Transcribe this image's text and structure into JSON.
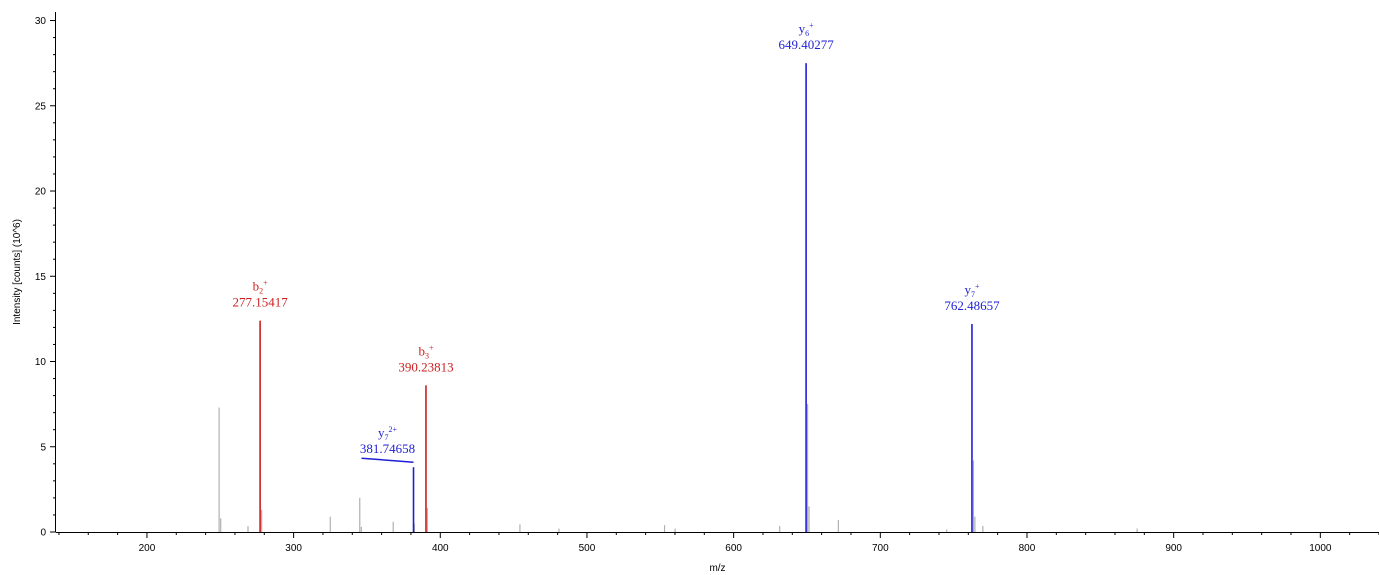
{
  "chart_data": {
    "type": "bar",
    "xlabel": "m/z",
    "ylabel": "Intensity [counts] (10^6)",
    "xlim": [
      138,
      1040
    ],
    "ylim": [
      0,
      30.5
    ],
    "x_ticks": [
      "200",
      "300",
      "400",
      "500",
      "600",
      "700",
      "800",
      "900",
      "1000"
    ],
    "x_tick_values": [
      200,
      300,
      400,
      500,
      600,
      700,
      800,
      900,
      1000
    ],
    "y_ticks": [
      "0",
      "5",
      "10",
      "15",
      "20",
      "25",
      "30"
    ],
    "y_tick_values": [
      0,
      5,
      10,
      15,
      20,
      25,
      30
    ],
    "colors": {
      "b_ion": "#cc1f1f",
      "y_ion": "#1f1fd6",
      "unassigned": "#b0b0b0",
      "axis": "#000000"
    },
    "annotated_peaks": [
      {
        "ion": "b",
        "sub": "2",
        "sup": "+",
        "mz_label": "277.15417",
        "mz": 277.15417,
        "intensity": 12.4,
        "type": "b"
      },
      {
        "ion": "b",
        "sub": "3",
        "sup": "+",
        "mz_label": "390.23813",
        "mz": 390.23813,
        "intensity": 8.6,
        "type": "b"
      },
      {
        "ion": "y",
        "sub": "7",
        "sup": "2+",
        "mz_label": "381.74658",
        "mz": 381.74658,
        "intensity": 3.8,
        "type": "y"
      },
      {
        "ion": "y",
        "sub": "6",
        "sup": "+",
        "mz_label": "649.40277",
        "mz": 649.40277,
        "intensity": 27.5,
        "type": "y"
      },
      {
        "ion": "y",
        "sub": "7",
        "sup": "+",
        "mz_label": "762.48657",
        "mz": 762.48657,
        "intensity": 12.2,
        "type": "y"
      }
    ],
    "unassigned_peaks": [
      {
        "mz": 249.2,
        "intensity": 7.3
      },
      {
        "mz": 250.3,
        "intensity": 0.8
      },
      {
        "mz": 268.9,
        "intensity": 0.35
      },
      {
        "mz": 278.2,
        "intensity": 1.3
      },
      {
        "mz": 325.0,
        "intensity": 0.9
      },
      {
        "mz": 345.1,
        "intensity": 2.0
      },
      {
        "mz": 346.2,
        "intensity": 0.3
      },
      {
        "mz": 367.9,
        "intensity": 0.6
      },
      {
        "mz": 382.3,
        "intensity": 0.5
      },
      {
        "mz": 391.2,
        "intensity": 1.4
      },
      {
        "mz": 454.3,
        "intensity": 0.45
      },
      {
        "mz": 480.9,
        "intensity": 0.2
      },
      {
        "mz": 552.9,
        "intensity": 0.4
      },
      {
        "mz": 560.1,
        "intensity": 0.2
      },
      {
        "mz": 631.4,
        "intensity": 0.35
      },
      {
        "mz": 650.4,
        "intensity": 7.5
      },
      {
        "mz": 651.4,
        "intensity": 1.5
      },
      {
        "mz": 671.4,
        "intensity": 0.7
      },
      {
        "mz": 745.3,
        "intensity": 0.15
      },
      {
        "mz": 763.5,
        "intensity": 4.2
      },
      {
        "mz": 764.5,
        "intensity": 0.9
      },
      {
        "mz": 769.9,
        "intensity": 0.35
      },
      {
        "mz": 875.1,
        "intensity": 0.2
      }
    ]
  }
}
